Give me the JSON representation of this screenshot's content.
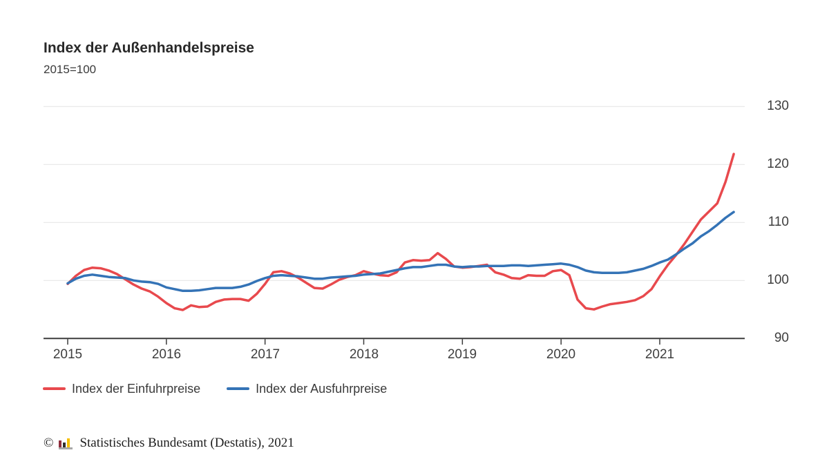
{
  "header": {
    "title": "Index der Außenhandelspreise",
    "subtitle": "2015=100"
  },
  "chart_data": {
    "type": "line",
    "title": "Index der Außenhandelspreise",
    "subtitle": "2015=100",
    "x_unit": "month",
    "x_range": "Jan 2015 – Okt 2021",
    "x_tick_labels": [
      "2015",
      "2016",
      "2017",
      "2018",
      "2019",
      "2020",
      "2021"
    ],
    "y_tick_labels": [
      "130",
      "120",
      "110",
      "100",
      "90"
    ],
    "ylim": [
      90,
      133
    ],
    "grid": "horizontal",
    "legend_position": "bottom-left",
    "series": [
      {
        "name": "Index der Einfuhrpreise",
        "color": "#e8494d",
        "values": [
          99.4,
          100.8,
          101.8,
          102.2,
          102.1,
          101.7,
          101.1,
          100.2,
          99.3,
          98.6,
          98.1,
          97.2,
          96.1,
          95.2,
          94.9,
          95.7,
          95.4,
          95.5,
          96.3,
          96.7,
          96.8,
          96.8,
          96.5,
          97.7,
          99.4,
          101.4,
          101.6,
          101.2,
          100.5,
          99.6,
          98.7,
          98.6,
          99.3,
          100.1,
          100.6,
          100.9,
          101.6,
          101.2,
          100.9,
          100.8,
          101.4,
          103.1,
          103.5,
          103.4,
          103.5,
          104.7,
          103.7,
          102.4,
          102.2,
          102.3,
          102.5,
          102.7,
          101.4,
          101.0,
          100.4,
          100.3,
          100.9,
          100.8,
          100.8,
          101.6,
          101.8,
          100.9,
          96.7,
          95.2,
          95.0,
          95.5,
          95.9,
          96.1,
          96.3,
          96.6,
          97.3,
          98.5,
          100.7,
          102.7,
          104.4,
          106.3,
          108.4,
          110.5,
          111.9,
          113.3,
          117.0,
          121.8
        ]
      },
      {
        "name": "Index der Ausfuhrpreise",
        "color": "#3473b6",
        "values": [
          99.5,
          100.3,
          100.8,
          101.0,
          100.8,
          100.6,
          100.5,
          100.4,
          100.0,
          99.8,
          99.7,
          99.4,
          98.8,
          98.5,
          98.2,
          98.2,
          98.3,
          98.5,
          98.7,
          98.7,
          98.7,
          98.9,
          99.3,
          99.9,
          100.4,
          100.8,
          100.9,
          100.8,
          100.7,
          100.5,
          100.3,
          100.3,
          100.5,
          100.6,
          100.7,
          100.8,
          101.0,
          101.1,
          101.2,
          101.5,
          101.8,
          102.1,
          102.3,
          102.3,
          102.5,
          102.7,
          102.7,
          102.4,
          102.3,
          102.4,
          102.4,
          102.5,
          102.5,
          102.5,
          102.6,
          102.6,
          102.5,
          102.6,
          102.7,
          102.8,
          102.9,
          102.7,
          102.3,
          101.7,
          101.4,
          101.3,
          101.3,
          101.3,
          101.4,
          101.7,
          102.0,
          102.5,
          103.1,
          103.6,
          104.5,
          105.5,
          106.4,
          107.6,
          108.5,
          109.6,
          110.8,
          111.8
        ]
      }
    ],
    "colors": {
      "grid": "#e4e4e4",
      "axis": "#3b3b3b",
      "tick": "#3b3b3b"
    }
  },
  "footer": {
    "copyright": "©",
    "source": "Statistisches Bundesamt (Destatis), 2021",
    "logo_colors": {
      "bar1": "#8f2d3c",
      "bar2": "#2f2f2e",
      "bar3": "#f5bf00",
      "base": "#a8a8a8"
    }
  }
}
